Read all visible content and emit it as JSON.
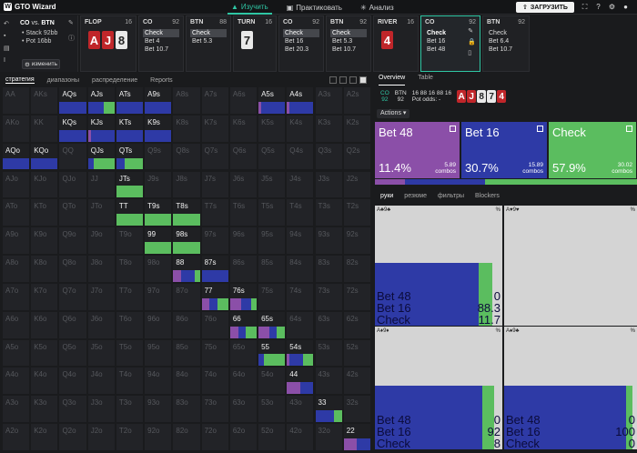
{
  "app": {
    "name": "GTO Wizard",
    "logo_letter": "W"
  },
  "nav": {
    "study": "Изучить",
    "practice": "Практиковать",
    "analyze": "Анализ",
    "upload": "ЗАГРУЗИТЬ"
  },
  "info": {
    "title_a": "CO",
    "title_vs": "vs.",
    "title_b": "BTN",
    "stack": "• Stack 92bb",
    "pot": "• Pot 16bb",
    "change": "изменить"
  },
  "strips": [
    {
      "header": "FLOP",
      "num": "16",
      "cards": [
        {
          "r": "A",
          "c": "red"
        },
        {
          "r": "J",
          "c": "red"
        },
        {
          "r": "8",
          "c": "white"
        }
      ]
    },
    {
      "header": "CO",
      "num": "92",
      "rows": [
        "Check",
        "Bet 4",
        "Bet 10.7"
      ],
      "hl": 0
    },
    {
      "header": "BTN",
      "num": "88",
      "rows": [
        "Check",
        "Bet 5.3"
      ],
      "hl": 0
    },
    {
      "header": "TURN",
      "num": "16",
      "cards": [
        {
          "r": "7",
          "c": "white"
        }
      ]
    },
    {
      "header": "CO",
      "num": "92",
      "rows": [
        "Check",
        "Bet 16",
        "Bet 20.3"
      ],
      "hl": 0
    },
    {
      "header": "BTN",
      "num": "92",
      "rows": [
        "Check",
        "Bet 5.3",
        "Bet 10.7"
      ],
      "hl": 0
    },
    {
      "header": "RIVER",
      "num": "16",
      "cards": [
        {
          "r": "4",
          "c": "red"
        }
      ]
    },
    {
      "header": "CO",
      "num": "92",
      "rows": [
        "Check",
        "Bet 16",
        "Bet 48"
      ],
      "hl": 0,
      "selected": true
    },
    {
      "header": "BTN",
      "num": "92",
      "rows": [
        "Check",
        "Bet 6.4",
        "Bet 10.7"
      ],
      "hl": -1
    }
  ],
  "grid_tabs": [
    "стратегия",
    "диапазоны",
    "распределение",
    "Reports"
  ],
  "right_tabs": [
    "Overview",
    "Table"
  ],
  "summary": {
    "pos1": "CO",
    "pos1_stack": "92",
    "pos2": "BTN",
    "pos2_stack": "92",
    "pot_line": "16 88 16 88 16",
    "pot_odds": "Pot odds: -",
    "board": [
      "A",
      "J",
      "8",
      "7",
      "4"
    ]
  },
  "actions_label": "Actions",
  "actions": [
    {
      "name": "Bet 48",
      "pct": "11.4%",
      "combos": "5.89",
      "color": "#8b4fa8",
      "freq": 0.114
    },
    {
      "name": "Bet 16",
      "pct": "30.7%",
      "combos": "15.89",
      "color": "#2e3aa6",
      "freq": 0.307
    },
    {
      "name": "Check",
      "pct": "57.9%",
      "combos": "30.02",
      "color": "#5bbd5f",
      "freq": 0.579
    }
  ],
  "combos_word": "combos",
  "hands_tabs": [
    "руки",
    "резюме",
    "фильтры",
    "Blockers"
  ],
  "hand_panels": [
    {
      "head": "A♣9♣",
      "b48": "0",
      "b16": "88.3",
      "chk": "11.7",
      "blue": 0.883
    },
    {
      "head": "A♥9♥",
      "b48": "",
      "b16": "",
      "chk": "",
      "blue": 0
    },
    {
      "head": "A♦9♦",
      "b48": "0",
      "b16": "92",
      "chk": "8",
      "blue": 0.92
    },
    {
      "head": "A♠9♣",
      "b48": "0",
      "b16": "100",
      "chk": "0",
      "blue": 1.0
    }
  ],
  "hand_labels": {
    "b48": "Bet 48",
    "b16": "Bet 16",
    "chk": "Check",
    "pct": "%"
  },
  "ranks": [
    "A",
    "K",
    "Q",
    "J",
    "T",
    "9",
    "8",
    "7",
    "6",
    "5",
    "4",
    "3",
    "2"
  ],
  "active_cells": {
    "AQs": [
      0,
      1,
      0
    ],
    "AJs": [
      0,
      0.6,
      0.4
    ],
    "ATs": [
      0,
      1,
      0
    ],
    "A9s": [
      0,
      1,
      0
    ],
    "A5s": [
      0.1,
      0.9,
      0
    ],
    "A4s": [
      0.1,
      0.9,
      0
    ],
    "KQs": [
      0,
      1,
      0
    ],
    "KJs": [
      0.1,
      0.9,
      0
    ],
    "KTs": [
      0,
      1,
      0
    ],
    "K9s": [
      0,
      1,
      0
    ],
    "AQo": [
      0,
      1,
      0
    ],
    "KQo": [
      0,
      1,
      0
    ],
    "QJs": [
      0,
      0.2,
      0.8
    ],
    "QTs": [
      0,
      0.3,
      0.7
    ],
    "JTs": [
      0,
      0,
      1
    ],
    "TT": [
      0,
      0,
      1
    ],
    "T9s": [
      0,
      0,
      1
    ],
    "T8s": [
      0,
      0,
      1
    ],
    "99": [
      0,
      0,
      1
    ],
    "98s": [
      0,
      0,
      1
    ],
    "88": [
      0.3,
      0.5,
      0.2
    ],
    "87s": [
      0,
      1,
      0
    ],
    "77": [
      0.3,
      0.3,
      0.4
    ],
    "76s": [
      0.4,
      0.4,
      0.2
    ],
    "66": [
      0.3,
      0.3,
      0.4
    ],
    "65s": [
      0.4,
      0.3,
      0.3
    ],
    "55": [
      0,
      0.2,
      0.8
    ],
    "54s": [
      0.1,
      0.5,
      0.4
    ],
    "44": [
      0.5,
      0.5,
      0
    ],
    "33": [
      0,
      0.7,
      0.3
    ],
    "22": [
      0.5,
      0.5,
      0
    ]
  }
}
